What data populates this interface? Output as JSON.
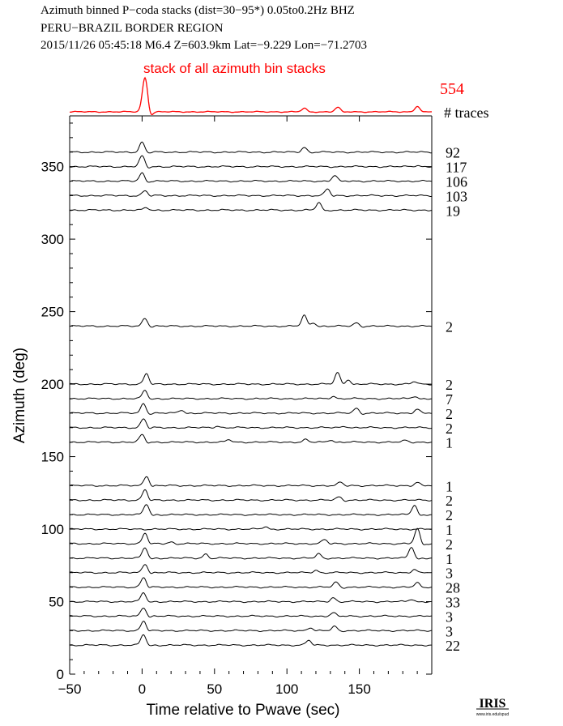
{
  "header": {
    "line1": "Azimuth binned P−coda stacks (dist=30−95*)  0.05to0.2Hz  BHZ",
    "line2": "PERU−BRAZIL BORDER REGION",
    "line3": "2015/11/26  05:45:18  M6.4  Z=603.9km Lat=−9.229 Lon=−71.2703"
  },
  "stack": {
    "label": "stack of all azimuth bin stacks",
    "total_traces": "554",
    "traces_label": "# traces",
    "color": "#ff0000"
  },
  "logo": {
    "text": "IRIS",
    "url": "www.iris.edu/spud"
  },
  "chart_data": {
    "type": "line",
    "xlabel": "Time relative to Pwave (sec)",
    "ylabel": "Azimuth (deg)",
    "xlim": [
      -50,
      200
    ],
    "ylim": [
      0,
      385
    ],
    "xticks": [
      "−50",
      "0",
      "50",
      "100",
      "150"
    ],
    "xtick_values": [
      -50,
      0,
      50,
      100,
      150
    ],
    "yticks": [
      "0",
      "50",
      "100",
      "150",
      "200",
      "250",
      "300",
      "350"
    ],
    "ytick_values": [
      0,
      50,
      100,
      150,
      200,
      250,
      300,
      350
    ],
    "grid": false,
    "stack_peaks": [
      {
        "t": 2,
        "amp": 1.0
      },
      {
        "t": 112,
        "amp": 0.1
      },
      {
        "t": 135,
        "amp": 0.13
      },
      {
        "t": 190,
        "amp": 0.16
      }
    ],
    "series": [
      {
        "azimuth": 360,
        "count": "92",
        "peaks": [
          {
            "t": 0,
            "amp": 12
          },
          {
            "t": 112,
            "amp": 6
          }
        ]
      },
      {
        "azimuth": 350,
        "count": "117",
        "peaks": [
          {
            "t": 0,
            "amp": 13
          },
          {
            "t": 190,
            "amp": 1.5
          }
        ]
      },
      {
        "azimuth": 340,
        "count": "106",
        "peaks": [
          {
            "t": 0,
            "amp": 10
          },
          {
            "t": 133,
            "amp": 7
          }
        ]
      },
      {
        "azimuth": 330,
        "count": "103",
        "peaks": [
          {
            "t": 2,
            "amp": 6
          },
          {
            "t": 128,
            "amp": 8
          }
        ]
      },
      {
        "azimuth": 320,
        "count": "19",
        "peaks": [
          {
            "t": 3,
            "amp": 3
          },
          {
            "t": 122,
            "amp": 9
          }
        ]
      },
      {
        "azimuth": 240,
        "count": "2",
        "peaks": [
          {
            "t": 2,
            "amp": 10
          },
          {
            "t": 112,
            "amp": 13
          },
          {
            "t": 118,
            "amp": 5
          },
          {
            "t": 148,
            "amp": 4
          }
        ]
      },
      {
        "azimuth": 200,
        "count": "2",
        "peaks": [
          {
            "t": 3,
            "amp": 13
          },
          {
            "t": 135,
            "amp": 14
          },
          {
            "t": 142,
            "amp": 6
          },
          {
            "t": 188,
            "amp": 3
          }
        ]
      },
      {
        "azimuth": 190,
        "count": "7",
        "peaks": [
          {
            "t": 2,
            "amp": 10
          },
          {
            "t": 132,
            "amp": 3
          },
          {
            "t": 188,
            "amp": 3
          }
        ]
      },
      {
        "azimuth": 180,
        "count": "2",
        "peaks": [
          {
            "t": 1,
            "amp": 12
          },
          {
            "t": 27,
            "amp": 4
          },
          {
            "t": 148,
            "amp": 6
          },
          {
            "t": 190,
            "amp": 5
          }
        ]
      },
      {
        "azimuth": 170,
        "count": "2",
        "peaks": [
          {
            "t": 1,
            "amp": 11
          },
          {
            "t": 52,
            "amp": 2
          },
          {
            "t": 140,
            "amp": 2
          }
        ]
      },
      {
        "azimuth": 160,
        "count": "1",
        "peaks": [
          {
            "t": 0,
            "amp": 9
          },
          {
            "t": 60,
            "amp": 3
          },
          {
            "t": 113,
            "amp": 3
          },
          {
            "t": 130,
            "amp": 3
          },
          {
            "t": 182,
            "amp": 2
          }
        ]
      },
      {
        "azimuth": 130,
        "count": "1",
        "peaks": [
          {
            "t": 3,
            "amp": 12
          },
          {
            "t": 137,
            "amp": 4
          },
          {
            "t": 190,
            "amp": 4
          }
        ]
      },
      {
        "azimuth": 120,
        "count": "2",
        "peaks": [
          {
            "t": 2,
            "amp": 13
          },
          {
            "t": 136,
            "amp": 4
          }
        ]
      },
      {
        "azimuth": 110,
        "count": "2",
        "peaks": [
          {
            "t": 3,
            "amp": 13
          },
          {
            "t": 188,
            "amp": 12
          }
        ]
      },
      {
        "azimuth": 100,
        "count": "1",
        "peaks": [
          {
            "t": 85,
            "amp": 3
          }
        ]
      },
      {
        "azimuth": 90,
        "count": "2",
        "peaks": [
          {
            "t": 2,
            "amp": 13
          },
          {
            "t": 20,
            "amp": 2
          },
          {
            "t": 126,
            "amp": 5
          },
          {
            "t": 190,
            "amp": 18
          }
        ]
      },
      {
        "azimuth": 80,
        "count": "1",
        "peaks": [
          {
            "t": 2,
            "amp": 13
          },
          {
            "t": 44,
            "amp": 5
          },
          {
            "t": 122,
            "amp": 5
          },
          {
            "t": 186,
            "amp": 14
          }
        ]
      },
      {
        "azimuth": 70,
        "count": "3",
        "peaks": [
          {
            "t": 2,
            "amp": 11
          },
          {
            "t": 120,
            "amp": 3
          },
          {
            "t": 188,
            "amp": 4
          }
        ]
      },
      {
        "azimuth": 60,
        "count": "28",
        "peaks": [
          {
            "t": 1,
            "amp": 12
          },
          {
            "t": 134,
            "amp": 6
          },
          {
            "t": 190,
            "amp": 5
          }
        ]
      },
      {
        "azimuth": 50,
        "count": "33",
        "peaks": [
          {
            "t": 1,
            "amp": 11
          },
          {
            "t": 132,
            "amp": 5
          },
          {
            "t": 186,
            "amp": 3
          }
        ]
      },
      {
        "azimuth": 40,
        "count": "3",
        "peaks": [
          {
            "t": 1,
            "amp": 11
          },
          {
            "t": 132,
            "amp": 4
          }
        ]
      },
      {
        "azimuth": 30,
        "count": "3",
        "peaks": [
          {
            "t": 1,
            "amp": 12
          },
          {
            "t": 116,
            "amp": 4
          },
          {
            "t": 133,
            "amp": 5
          }
        ]
      },
      {
        "azimuth": 20,
        "count": "22",
        "peaks": [
          {
            "t": 1,
            "amp": 13
          },
          {
            "t": 115,
            "amp": 6
          }
        ]
      }
    ]
  }
}
